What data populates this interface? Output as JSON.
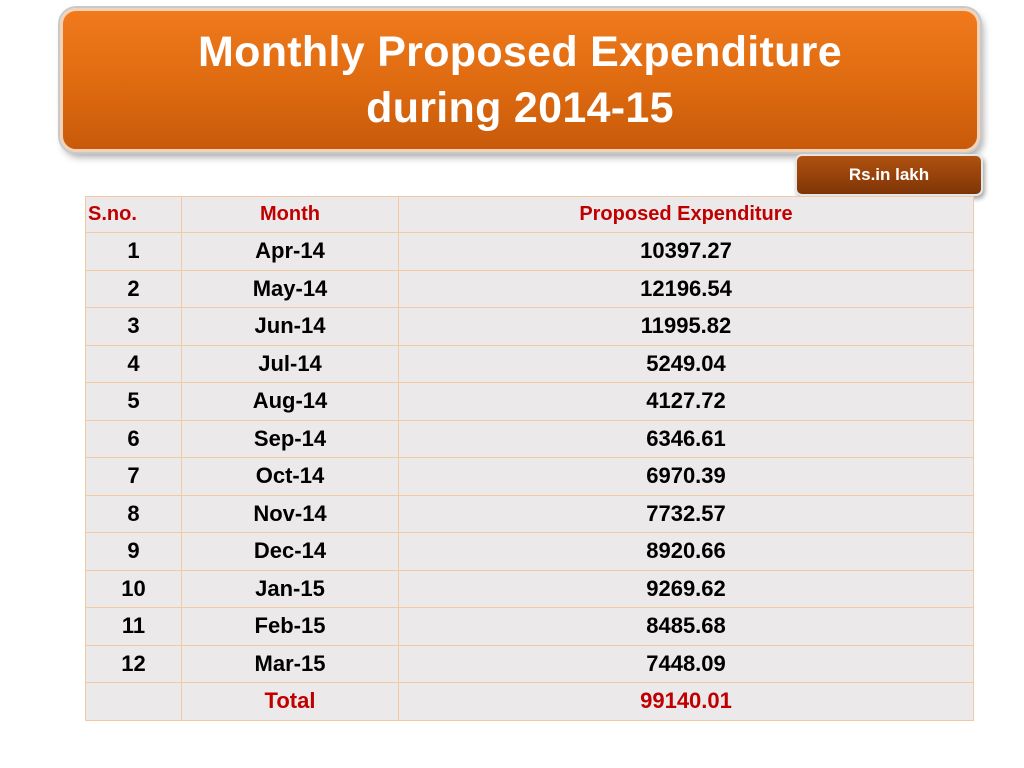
{
  "title": {
    "line1": "Monthly Proposed Expenditure",
    "line2": "during 2014-15"
  },
  "unit_label": "Rs.in lakh",
  "table": {
    "headers": {
      "sno": "S.no.",
      "month": "Month",
      "expenditure": "Proposed Expenditure"
    },
    "rows": [
      {
        "sno": "1",
        "month": "Apr-14",
        "value": "10397.27"
      },
      {
        "sno": "2",
        "month": "May-14",
        "value": "12196.54"
      },
      {
        "sno": "3",
        "month": "Jun-14",
        "value": "11995.82"
      },
      {
        "sno": "4",
        "month": "Jul-14",
        "value": "5249.04"
      },
      {
        "sno": "5",
        "month": "Aug-14",
        "value": "4127.72"
      },
      {
        "sno": "6",
        "month": "Sep-14",
        "value": "6346.61"
      },
      {
        "sno": "7",
        "month": "Oct-14",
        "value": "6970.39"
      },
      {
        "sno": "8",
        "month": "Nov-14",
        "value": "7732.57"
      },
      {
        "sno": "9",
        "month": "Dec-14",
        "value": "8920.66"
      },
      {
        "sno": "10",
        "month": "Jan-15",
        "value": "9269.62"
      },
      {
        "sno": "11",
        "month": "Feb-15",
        "value": "8485.68"
      },
      {
        "sno": "12",
        "month": "Mar-15",
        "value": "7448.09"
      }
    ],
    "total": {
      "label": "Total",
      "value": "99140.01"
    }
  },
  "colors": {
    "banner": "#de6a10",
    "badge": "#93400a",
    "header_text": "#c00000",
    "table_bg": "#ebe9e9",
    "grid": "#f2c9a3"
  }
}
